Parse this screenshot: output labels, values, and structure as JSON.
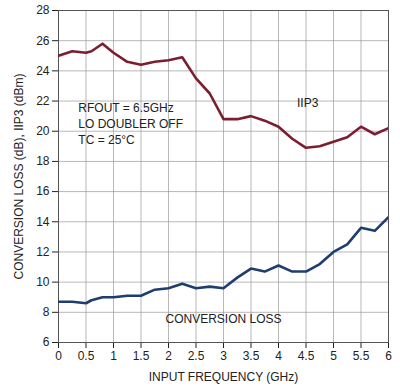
{
  "chart_data": {
    "type": "line",
    "x_label": "INPUT FREQUENCY (GHz)",
    "y_label": "CONVERSION LOSS (dB), IIP3 (dBm)",
    "annotations": [
      "RFOUT = 6.5GHz",
      "LO DOUBLER OFF",
      "TC = 25°C"
    ],
    "x": [
      0,
      0.25,
      0.5,
      0.6,
      0.8,
      1.0,
      1.25,
      1.5,
      1.75,
      2.0,
      2.25,
      2.5,
      2.75,
      3.0,
      3.25,
      3.5,
      3.75,
      4.0,
      4.25,
      4.5,
      4.75,
      5.0,
      5.25,
      5.5,
      5.75,
      6.0
    ],
    "series": [
      {
        "name": "IIP3",
        "color": "#7b1e30",
        "values": [
          25.0,
          25.3,
          25.2,
          25.3,
          25.8,
          25.2,
          24.6,
          24.4,
          24.6,
          24.7,
          24.9,
          23.5,
          22.5,
          20.8,
          20.8,
          21.0,
          20.7,
          20.3,
          19.5,
          18.9,
          19.0,
          19.3,
          19.6,
          20.3,
          19.8,
          20.2
        ]
      },
      {
        "name": "CONVERSION LOSS",
        "color": "#1f3d6e",
        "values": [
          8.7,
          8.7,
          8.6,
          8.8,
          9.0,
          9.0,
          9.1,
          9.1,
          9.5,
          9.6,
          9.9,
          9.6,
          9.7,
          9.6,
          10.3,
          10.9,
          10.7,
          11.1,
          10.7,
          10.7,
          11.2,
          12.0,
          12.5,
          13.6,
          13.4,
          14.3
        ]
      }
    ],
    "xlim": [
      0,
      6
    ],
    "xticks": [
      0,
      0.5,
      1,
      1.5,
      2,
      2.5,
      3,
      3.5,
      4,
      4.5,
      5,
      5.5,
      6
    ],
    "ylim": [
      6,
      28
    ],
    "yticks": [
      6,
      8,
      10,
      12,
      14,
      16,
      18,
      20,
      22,
      24,
      26,
      28
    ],
    "grid": true
  }
}
